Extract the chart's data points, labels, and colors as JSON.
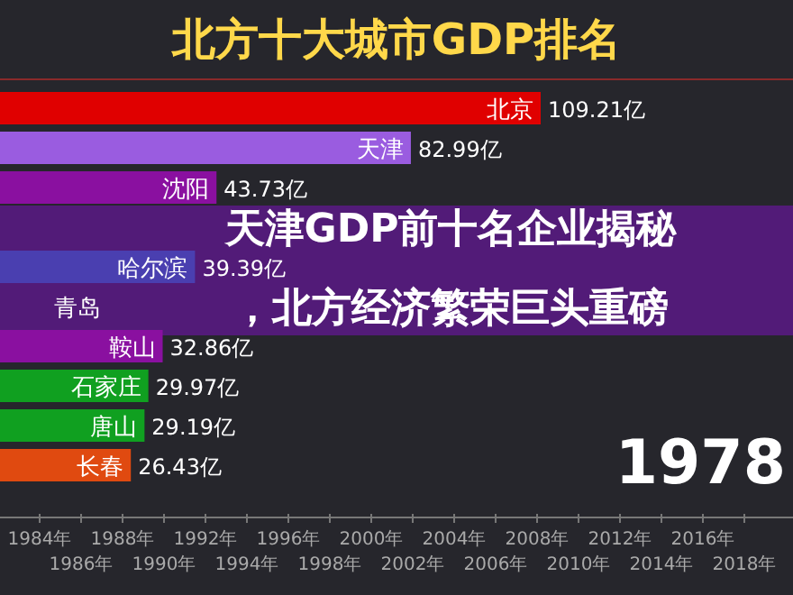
{
  "chart_data": {
    "type": "bar",
    "orientation": "horizontal",
    "title": "北方十大城市GDP排名",
    "categories": [
      "北京",
      "天津",
      "沈阳",
      null,
      "哈尔滨",
      "青岛",
      "鞍山",
      "石家庄",
      "唐山",
      "长春"
    ],
    "values": [
      109.21,
      82.99,
      43.73,
      null,
      39.39,
      null,
      32.86,
      29.97,
      29.19,
      26.43
    ],
    "colors": [
      "#e00000",
      "#9a5ce0",
      "#8a10a0",
      "#7a2aa8",
      "#4a3fb0",
      "#4a4ac0",
      "#8a10a0",
      "#10a020",
      "#10a020",
      "#e04a10"
    ],
    "value_labels": [
      "109.21亿",
      "82.99亿",
      "43.73亿",
      null,
      "39.39亿",
      null,
      "32.86亿",
      "29.97亿",
      "29.19亿",
      "26.43亿"
    ],
    "annotations": [
      "天津GDP前十名企业揭秘",
      "，北方经济繁荣巨头重磅",
      "1978",
      "1984年",
      "1986年",
      "1988年",
      "1990年",
      "1992年",
      "1994年",
      "1996年",
      "1998年",
      "2000年",
      "2002年",
      "2004年",
      "2006年",
      "2008年",
      "2010年",
      "2012年",
      "2014年",
      "2016年",
      "2018年"
    ]
  }
}
